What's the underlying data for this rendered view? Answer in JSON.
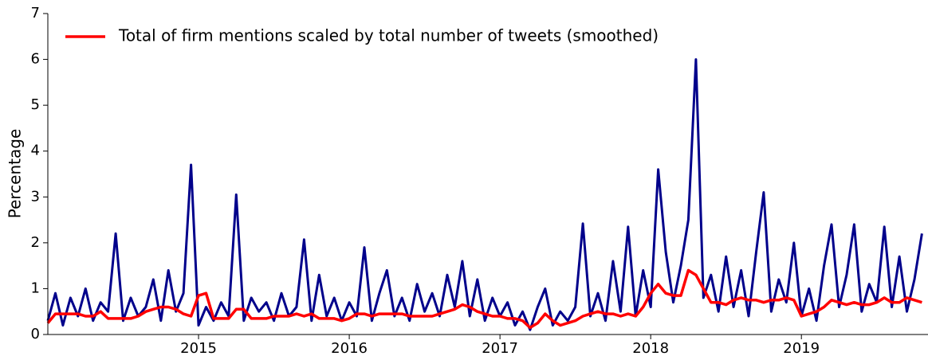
{
  "chart_data": {
    "type": "line",
    "y_label": "Percentage",
    "legend": "upper left",
    "xlim": [
      2014.0,
      2019.84
    ],
    "ylim": [
      0,
      7
    ],
    "xticks": [
      2015,
      2016,
      2017,
      2018,
      2019
    ],
    "yticks": [
      0,
      1,
      2,
      3,
      4,
      5,
      6,
      7
    ],
    "x": [
      2014,
      2014.05,
      2014.1,
      2014.15,
      2014.2,
      2014.25,
      2014.3,
      2014.35,
      2014.4,
      2014.45,
      2014.5,
      2014.55,
      2014.6,
      2014.65,
      2014.7,
      2014.75,
      2014.8,
      2014.85,
      2014.9,
      2014.95,
      2015,
      2015.05,
      2015.1,
      2015.15,
      2015.2,
      2015.25,
      2015.3,
      2015.35,
      2015.4,
      2015.45,
      2015.5,
      2015.55,
      2015.6,
      2015.65,
      2015.7,
      2015.75,
      2015.8,
      2015.85,
      2015.9,
      2015.95,
      2016,
      2016.05,
      2016.1,
      2016.15,
      2016.2,
      2016.25,
      2016.3,
      2016.35,
      2016.4,
      2016.45,
      2016.5,
      2016.55,
      2016.6,
      2016.65,
      2016.7,
      2016.75,
      2016.8,
      2016.85,
      2016.9,
      2016.95,
      2017,
      2017.05,
      2017.1,
      2017.15,
      2017.2,
      2017.25,
      2017.3,
      2017.35,
      2017.4,
      2017.45,
      2017.5,
      2017.55,
      2017.6,
      2017.65,
      2017.7,
      2017.75,
      2017.8,
      2017.85,
      2017.9,
      2017.95,
      2018,
      2018.05,
      2018.1,
      2018.15,
      2018.2,
      2018.25,
      2018.3,
      2018.35,
      2018.4,
      2018.45,
      2018.5,
      2018.55,
      2018.6,
      2018.65,
      2018.7,
      2018.75,
      2018.8,
      2018.85,
      2018.9,
      2018.95,
      2019,
      2019.05,
      2019.1,
      2019.15,
      2019.2,
      2019.25,
      2019.3,
      2019.35,
      2019.4,
      2019.45,
      2019.5,
      2019.55,
      2019.6,
      2019.65,
      2019.7,
      2019.75,
      2019.8
    ],
    "series": [
      {
        "color": "#00008b",
        "values": [
          0.3,
          0.9,
          0.2,
          0.8,
          0.4,
          1.0,
          0.3,
          0.7,
          0.5,
          2.2,
          0.3,
          0.8,
          0.4,
          0.6,
          1.2,
          0.3,
          1.4,
          0.5,
          0.9,
          3.7,
          0.2,
          0.6,
          0.3,
          0.7,
          0.4,
          3.05,
          0.3,
          0.8,
          0.5,
          0.7,
          0.3,
          0.9,
          0.4,
          0.6,
          2.07,
          0.3,
          1.3,
          0.4,
          0.8,
          0.3,
          0.7,
          0.4,
          1.9,
          0.3,
          0.9,
          1.4,
          0.4,
          0.8,
          0.3,
          1.1,
          0.5,
          0.9,
          0.4,
          1.3,
          0.6,
          1.6,
          0.4,
          1.2,
          0.3,
          0.8,
          0.4,
          0.7,
          0.2,
          0.5,
          0.1,
          0.6,
          1.0,
          0.2,
          0.5,
          0.3,
          0.6,
          2.42,
          0.4,
          0.9,
          0.3,
          1.6,
          0.5,
          2.35,
          0.4,
          1.4,
          0.6,
          3.6,
          1.8,
          0.7,
          1.5,
          2.5,
          6.0,
          0.8,
          1.3,
          0.5,
          1.7,
          0.6,
          1.4,
          0.4,
          1.8,
          3.1,
          0.5,
          1.2,
          0.7,
          2.0,
          0.4,
          1.0,
          0.3,
          1.5,
          2.4,
          0.6,
          1.3,
          2.4,
          0.5,
          1.1,
          0.7,
          2.35,
          0.6,
          1.7,
          0.5,
          1.2,
          2.2
        ]
      },
      {
        "name": "Total of firm mentions scaled by total number of tweets (smoothed)",
        "color": "#ff0000",
        "values": [
          0.25,
          0.45,
          0.45,
          0.45,
          0.45,
          0.4,
          0.4,
          0.5,
          0.35,
          0.35,
          0.35,
          0.35,
          0.4,
          0.5,
          0.55,
          0.6,
          0.6,
          0.55,
          0.45,
          0.4,
          0.85,
          0.9,
          0.35,
          0.35,
          0.35,
          0.55,
          0.55,
          0.35,
          0.35,
          0.35,
          0.4,
          0.4,
          0.4,
          0.45,
          0.4,
          0.45,
          0.35,
          0.35,
          0.35,
          0.3,
          0.35,
          0.45,
          0.45,
          0.4,
          0.45,
          0.45,
          0.45,
          0.45,
          0.4,
          0.4,
          0.4,
          0.4,
          0.45,
          0.5,
          0.55,
          0.65,
          0.6,
          0.5,
          0.45,
          0.4,
          0.4,
          0.35,
          0.35,
          0.3,
          0.15,
          0.25,
          0.45,
          0.3,
          0.2,
          0.25,
          0.3,
          0.4,
          0.45,
          0.5,
          0.45,
          0.45,
          0.4,
          0.45,
          0.4,
          0.6,
          0.9,
          1.1,
          0.9,
          0.85,
          0.85,
          1.4,
          1.3,
          1.0,
          0.7,
          0.7,
          0.65,
          0.75,
          0.8,
          0.75,
          0.75,
          0.7,
          0.75,
          0.75,
          0.8,
          0.75,
          0.4,
          0.45,
          0.5,
          0.6,
          0.75,
          0.7,
          0.65,
          0.7,
          0.65,
          0.65,
          0.7,
          0.8,
          0.7,
          0.7,
          0.8,
          0.75,
          0.7
        ]
      }
    ]
  }
}
